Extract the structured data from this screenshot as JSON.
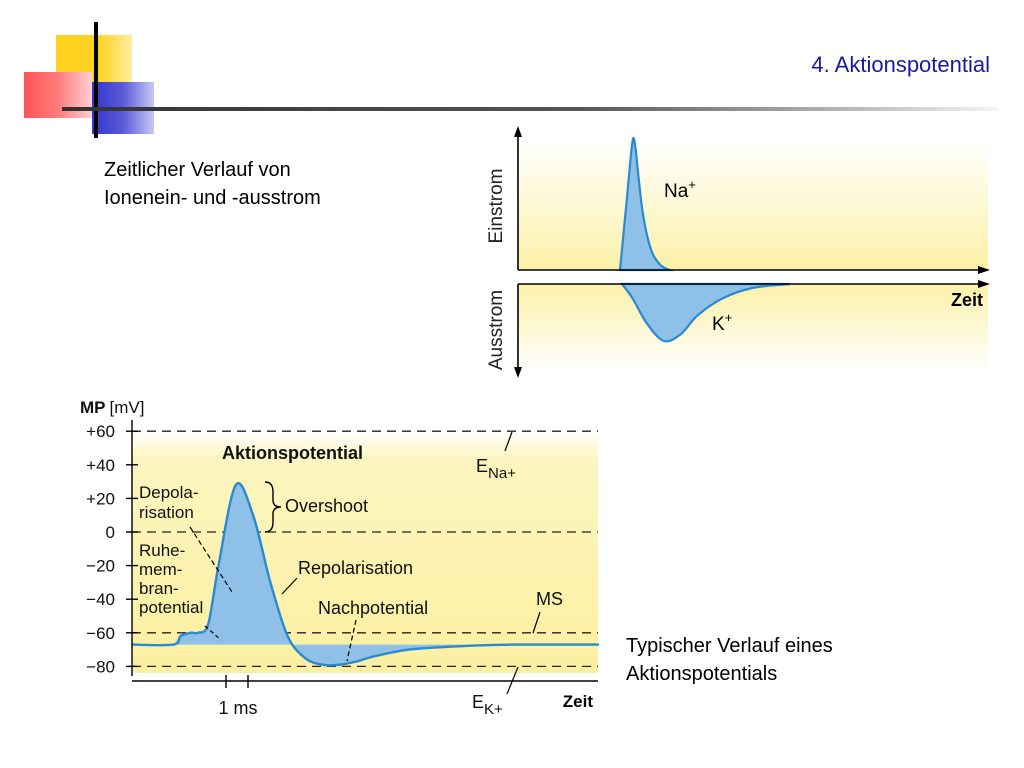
{
  "slide": {
    "title": "4. Aktionspotential",
    "caption_top": [
      "Zeitlicher Verlauf von",
      "Ionenein- und -ausstrom"
    ],
    "caption_bottom": [
      "Typischer Verlauf eines",
      "Aktionspotentials"
    ]
  },
  "colors": {
    "title": "#1a1a9c",
    "fill": "#8ec0e8",
    "curve": "#2a8ad0",
    "background": "#fbf3b0",
    "deco_yellow": "#ffd21f",
    "deco_red": "#ff5a5a",
    "deco_blue": "#3c3ccf"
  },
  "chart_data": [
    {
      "type": "area",
      "ylabel_top": "Einstrom",
      "ylabel_bottom": "Ausstrom",
      "xlabel": "Zeit",
      "grid": false,
      "series": [
        {
          "name": "Na",
          "superscript": "+",
          "direction": "inward",
          "x": [
            0,
            4,
            8,
            10,
            12,
            15,
            20,
            26,
            32
          ],
          "values": [
            0,
            0.5,
            1.0,
            0.95,
            0.72,
            0.42,
            0.16,
            0.04,
            0
          ]
        },
        {
          "name": "K",
          "superscript": "+",
          "direction": "outward",
          "x": [
            0,
            5,
            12,
            20,
            28,
            36,
            48,
            62,
            80
          ],
          "values": [
            0,
            -0.25,
            -0.7,
            -1.0,
            -0.88,
            -0.55,
            -0.25,
            -0.07,
            0
          ]
        }
      ]
    },
    {
      "type": "area",
      "title": "Aktionspotential",
      "ylabel_bold": "MP",
      "ylabel_unit": "[mV]",
      "xlabel": "Zeit",
      "x_tick_label": "1 ms",
      "yticks": [
        "+60",
        "+40",
        "+20",
        "0",
        "−20",
        "−40",
        "−60",
        "−80"
      ],
      "ytick_values": [
        60,
        40,
        20,
        0,
        -20,
        -40,
        -60,
        -80
      ],
      "ylim": [
        -90,
        60
      ],
      "reference_lines": [
        {
          "value": 60,
          "label": "E",
          "subscript": "Na+"
        },
        {
          "value": 0
        },
        {
          "value": -60,
          "label": "MS"
        },
        {
          "value": -80,
          "label": "E",
          "subscript": "K+"
        }
      ],
      "series": [
        {
          "name": "Membranpotential",
          "t": [
            0,
            2.4,
            2.8,
            3.4,
            3.8,
            4.4,
            5.0,
            6.0,
            7.0,
            8.0,
            9.0,
            10.0,
            11.0,
            12.0,
            13.0,
            14.0,
            16.0,
            18.0,
            20.0,
            22.0,
            24.0,
            27.0
          ],
          "mv": [
            -67,
            -67,
            -62,
            -60,
            -60,
            -55,
            -20,
            28,
            10,
            -30,
            -62,
            -75,
            -79,
            -79,
            -77,
            -74,
            -70,
            -68.5,
            -67.5,
            -67,
            -67,
            -67
          ]
        }
      ],
      "annotations": {
        "depolarisation": [
          "Depola-",
          "risation"
        ],
        "overshoot": "Overshoot",
        "repolarisation": "Repolarisation",
        "resting_potential": [
          "Ruhe-",
          "mem-",
          "bran-",
          "potential"
        ],
        "afterpotential": "Nachpotential"
      }
    }
  ]
}
